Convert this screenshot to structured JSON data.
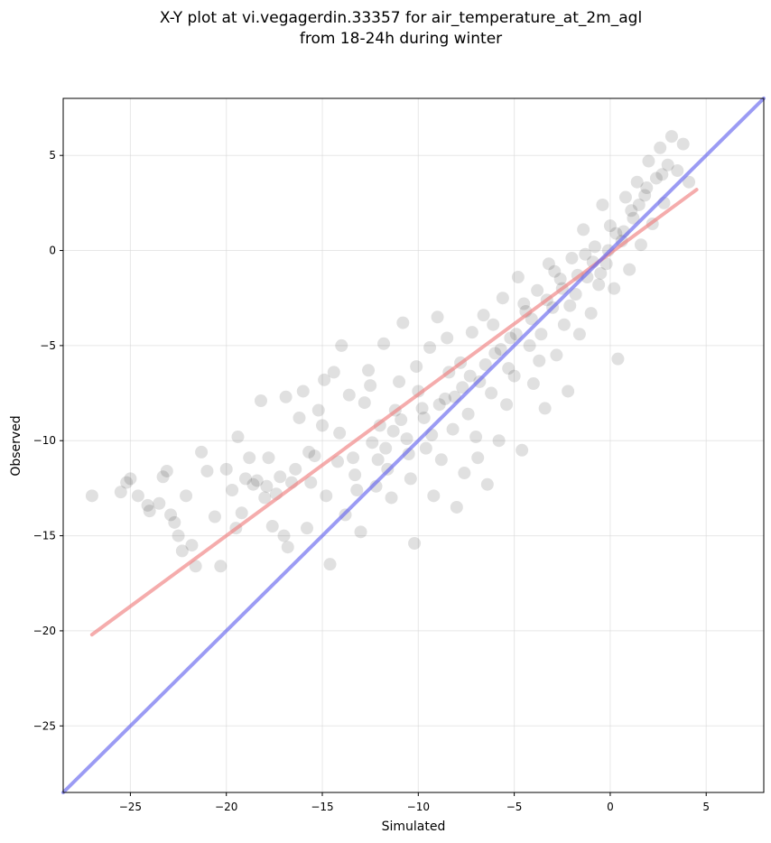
{
  "chart_data": {
    "type": "scatter",
    "title_line1": "X-Y plot at vi.vegagerdin.33357 for air_temperature_at_2m_agl",
    "title_line2": "from 18-24h during winter",
    "xlabel": "Simulated",
    "ylabel": "Observed",
    "xlim": [
      -28.5,
      8
    ],
    "ylim": [
      -28.5,
      8
    ],
    "x_ticks": [
      -25,
      -20,
      -15,
      -10,
      -5,
      0,
      5
    ],
    "y_ticks": [
      -25,
      -20,
      -15,
      -10,
      -5,
      0,
      5
    ],
    "x_tick_labels": [
      "−25",
      "−20",
      "−15",
      "−10",
      "−5",
      "0",
      "5"
    ],
    "y_tick_labels": [
      "−25",
      "−20",
      "−15",
      "−10",
      "−5",
      "0",
      "5"
    ],
    "grid": true,
    "colors": {
      "points": "#000000",
      "regression": "#f08080",
      "identity": "#6666ee"
    },
    "series": [
      {
        "type": "scatter",
        "points": [
          [
            -27.0,
            -12.9
          ],
          [
            -25.5,
            -12.7
          ],
          [
            -25.2,
            -12.2
          ],
          [
            -25.0,
            -12.0
          ],
          [
            -24.6,
            -12.9
          ],
          [
            -24.1,
            -13.4
          ],
          [
            -24.0,
            -13.7
          ],
          [
            -23.5,
            -13.3
          ],
          [
            -23.3,
            -11.9
          ],
          [
            -23.1,
            -11.6
          ],
          [
            -22.9,
            -13.9
          ],
          [
            -22.7,
            -14.3
          ],
          [
            -22.5,
            -15.0
          ],
          [
            -22.3,
            -15.8
          ],
          [
            -22.1,
            -12.9
          ],
          [
            -21.8,
            -15.5
          ],
          [
            -21.6,
            -16.6
          ],
          [
            -21.3,
            -10.6
          ],
          [
            -21.0,
            -11.6
          ],
          [
            -20.6,
            -14.0
          ],
          [
            -20.3,
            -16.6
          ],
          [
            -20.0,
            -11.5
          ],
          [
            -19.7,
            -12.6
          ],
          [
            -19.5,
            -14.6
          ],
          [
            -19.2,
            -13.8
          ],
          [
            -19.0,
            -12.0
          ],
          [
            -18.8,
            -10.9
          ],
          [
            -18.6,
            -12.3
          ],
          [
            -18.4,
            -12.1
          ],
          [
            -18.2,
            -7.9
          ],
          [
            -18.0,
            -13.0
          ],
          [
            -17.8,
            -10.9
          ],
          [
            -17.6,
            -14.5
          ],
          [
            -17.4,
            -12.8
          ],
          [
            -17.2,
            -11.9
          ],
          [
            -17.0,
            -15.0
          ],
          [
            -16.8,
            -15.6
          ],
          [
            -16.6,
            -12.2
          ],
          [
            -16.4,
            -11.5
          ],
          [
            -16.2,
            -8.8
          ],
          [
            -16.0,
            -7.4
          ],
          [
            -15.8,
            -14.6
          ],
          [
            -15.6,
            -12.2
          ],
          [
            -15.4,
            -10.8
          ],
          [
            -15.2,
            -8.4
          ],
          [
            -15.0,
            -9.2
          ],
          [
            -14.8,
            -12.9
          ],
          [
            -14.6,
            -16.5
          ],
          [
            -14.4,
            -6.4
          ],
          [
            -14.2,
            -11.1
          ],
          [
            -14.0,
            -5.0
          ],
          [
            -13.8,
            -13.9
          ],
          [
            -13.6,
            -7.6
          ],
          [
            -13.4,
            -10.9
          ],
          [
            -13.2,
            -12.6
          ],
          [
            -13.0,
            -14.8
          ],
          [
            -12.8,
            -8.0
          ],
          [
            -12.6,
            -6.3
          ],
          [
            -12.4,
            -10.1
          ],
          [
            -12.2,
            -12.4
          ],
          [
            -12.0,
            -9.2
          ],
          [
            -11.8,
            -4.9
          ],
          [
            -11.6,
            -11.5
          ],
          [
            -11.4,
            -13.0
          ],
          [
            -11.2,
            -8.4
          ],
          [
            -11.0,
            -6.9
          ],
          [
            -10.8,
            -3.8
          ],
          [
            -10.6,
            -9.9
          ],
          [
            -10.4,
            -12.0
          ],
          [
            -10.2,
            -15.4
          ],
          [
            -10.0,
            -7.4
          ],
          [
            -9.8,
            -8.3
          ],
          [
            -9.6,
            -10.4
          ],
          [
            -9.4,
            -5.1
          ],
          [
            -9.2,
            -12.9
          ],
          [
            -9.0,
            -3.5
          ],
          [
            -8.8,
            -11.0
          ],
          [
            -8.6,
            -7.8
          ],
          [
            -8.4,
            -6.4
          ],
          [
            -8.2,
            -9.4
          ],
          [
            -8.0,
            -13.5
          ],
          [
            -7.8,
            -5.9
          ],
          [
            -7.6,
            -11.7
          ],
          [
            -7.4,
            -8.6
          ],
          [
            -7.2,
            -4.3
          ],
          [
            -7.0,
            -9.8
          ],
          [
            -6.8,
            -6.9
          ],
          [
            -6.6,
            -3.4
          ],
          [
            -6.4,
            -12.3
          ],
          [
            -6.2,
            -7.5
          ],
          [
            -6.0,
            -5.4
          ],
          [
            -5.8,
            -10.0
          ],
          [
            -5.6,
            -2.5
          ],
          [
            -5.4,
            -8.1
          ],
          [
            -5.2,
            -4.6
          ],
          [
            -5.0,
            -6.6
          ],
          [
            -4.8,
            -1.4
          ],
          [
            -4.6,
            -10.5
          ],
          [
            -4.4,
            -3.2
          ],
          [
            -4.2,
            -5.0
          ],
          [
            -4.0,
            -7.0
          ],
          [
            -3.8,
            -2.1
          ],
          [
            -3.6,
            -4.4
          ],
          [
            -3.4,
            -8.3
          ],
          [
            -3.2,
            -0.7
          ],
          [
            -3.0,
            -3.0
          ],
          [
            -2.8,
            -5.5
          ],
          [
            -2.6,
            -1.5
          ],
          [
            -2.4,
            -3.9
          ],
          [
            -2.2,
            -7.4
          ],
          [
            -2.0,
            -0.4
          ],
          [
            -1.8,
            -2.3
          ],
          [
            -1.6,
            -4.4
          ],
          [
            -1.4,
            1.1
          ],
          [
            -1.2,
            -1.4
          ],
          [
            -1.0,
            -3.3
          ],
          [
            -0.8,
            0.2
          ],
          [
            -0.6,
            -1.8
          ],
          [
            -0.4,
            2.4
          ],
          [
            -0.2,
            -0.7
          ],
          [
            0.0,
            1.3
          ],
          [
            0.2,
            -2.0
          ],
          [
            0.4,
            -5.7
          ],
          [
            0.6,
            0.5
          ],
          [
            0.8,
            2.8
          ],
          [
            1.0,
            -1.0
          ],
          [
            1.2,
            1.7
          ],
          [
            1.4,
            3.6
          ],
          [
            1.6,
            0.3
          ],
          [
            1.8,
            2.9
          ],
          [
            2.0,
            4.7
          ],
          [
            2.2,
            1.4
          ],
          [
            2.4,
            3.8
          ],
          [
            2.6,
            5.4
          ],
          [
            2.8,
            2.5
          ],
          [
            3.0,
            4.5
          ],
          [
            3.2,
            6.0
          ],
          [
            3.5,
            4.2
          ],
          [
            3.8,
            5.6
          ],
          [
            4.1,
            3.6
          ],
          [
            -19.4,
            -9.8
          ],
          [
            -17.9,
            -12.4
          ],
          [
            -16.9,
            -7.7
          ],
          [
            -15.7,
            -10.6
          ],
          [
            -14.9,
            -6.8
          ],
          [
            -14.1,
            -9.6
          ],
          [
            -13.3,
            -11.8
          ],
          [
            -12.5,
            -7.1
          ],
          [
            -11.7,
            -10.4
          ],
          [
            -10.9,
            -8.9
          ],
          [
            -10.1,
            -6.1
          ],
          [
            -9.3,
            -9.7
          ],
          [
            -8.5,
            -4.6
          ],
          [
            -7.7,
            -7.2
          ],
          [
            -6.9,
            -10.9
          ],
          [
            -6.1,
            -3.9
          ],
          [
            -5.3,
            -6.2
          ],
          [
            -4.5,
            -2.8
          ],
          [
            -3.7,
            -5.8
          ],
          [
            -2.9,
            -1.1
          ],
          [
            -2.1,
            -2.9
          ],
          [
            -1.3,
            -0.2
          ],
          [
            -0.5,
            -1.2
          ],
          [
            0.3,
            0.9
          ],
          [
            1.1,
            2.1
          ],
          [
            1.9,
            3.3
          ],
          [
            2.7,
            4.0
          ],
          [
            -12.1,
            -11.0
          ],
          [
            -11.3,
            -9.5
          ],
          [
            -10.5,
            -10.7
          ],
          [
            -9.7,
            -8.8
          ],
          [
            -8.9,
            -8.1
          ],
          [
            -8.1,
            -7.7
          ],
          [
            -7.3,
            -6.6
          ],
          [
            -6.5,
            -6.0
          ],
          [
            -5.7,
            -5.2
          ],
          [
            -4.9,
            -4.4
          ],
          [
            -4.1,
            -3.6
          ],
          [
            -3.3,
            -2.6
          ],
          [
            -2.5,
            -2.0
          ],
          [
            -1.7,
            -1.3
          ],
          [
            -0.9,
            -0.6
          ],
          [
            -0.1,
            0.0
          ],
          [
            0.7,
            1.0
          ],
          [
            1.5,
            2.4
          ]
        ]
      },
      {
        "type": "line",
        "points": [
          [
            -27.0,
            -20.2
          ],
          [
            4.5,
            3.2
          ]
        ]
      },
      {
        "type": "line",
        "points": [
          [
            -28.5,
            -28.5
          ],
          [
            8.0,
            8.0
          ]
        ]
      }
    ]
  }
}
